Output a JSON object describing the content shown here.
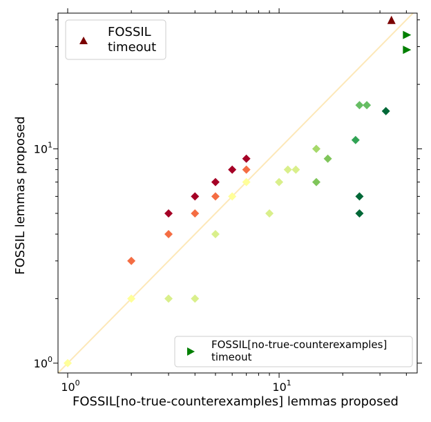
{
  "chart_data": {
    "type": "scatter",
    "xlabel": "FOSSIL[no-true-counterexamples] lemmas proposed",
    "ylabel": "FOSSIL lemmas proposed",
    "xscale": "log",
    "yscale": "log",
    "xlim": [
      0.9,
      45
    ],
    "ylim": [
      0.9,
      43
    ],
    "x_ticks": [
      {
        "value": 1,
        "base": "10",
        "exp": "0"
      },
      {
        "value": 10,
        "base": "10",
        "exp": "1"
      }
    ],
    "y_ticks": [
      {
        "value": 1,
        "base": "10",
        "exp": "0"
      },
      {
        "value": 10,
        "base": "10",
        "exp": "1"
      }
    ],
    "diagonal": {
      "color": "#fde8b8"
    },
    "points": [
      {
        "x": 1,
        "y": 1,
        "color": "#ffff99"
      },
      {
        "x": 2,
        "y": 2,
        "color": "#ffff99"
      },
      {
        "x": 2,
        "y": 3,
        "color": "#f46d43"
      },
      {
        "x": 3,
        "y": 2,
        "color": "#d9ef8b"
      },
      {
        "x": 3,
        "y": 4,
        "color": "#f46d43"
      },
      {
        "x": 3,
        "y": 5,
        "color": "#a50026"
      },
      {
        "x": 4,
        "y": 2,
        "color": "#d9ef8b"
      },
      {
        "x": 4,
        "y": 5,
        "color": "#f46d43"
      },
      {
        "x": 4,
        "y": 6,
        "color": "#a50026"
      },
      {
        "x": 5,
        "y": 4,
        "color": "#d9ef8b"
      },
      {
        "x": 5,
        "y": 6,
        "color": "#f46d43"
      },
      {
        "x": 5,
        "y": 7,
        "color": "#a50026"
      },
      {
        "x": 6,
        "y": 6,
        "color": "#ffff99"
      },
      {
        "x": 6,
        "y": 8,
        "color": "#a50026"
      },
      {
        "x": 7,
        "y": 7,
        "color": "#ffff99"
      },
      {
        "x": 7,
        "y": 8,
        "color": "#f46d43"
      },
      {
        "x": 7,
        "y": 9,
        "color": "#a50026"
      },
      {
        "x": 9,
        "y": 5,
        "color": "#d9ef8b"
      },
      {
        "x": 10,
        "y": 7,
        "color": "#d9ef8b"
      },
      {
        "x": 11,
        "y": 8,
        "color": "#d9ef8b"
      },
      {
        "x": 12,
        "y": 8,
        "color": "#d9ef8b"
      },
      {
        "x": 15,
        "y": 7,
        "color": "#7fc55a"
      },
      {
        "x": 15,
        "y": 10,
        "color": "#a6d96a"
      },
      {
        "x": 17,
        "y": 9,
        "color": "#7fc55a"
      },
      {
        "x": 23,
        "y": 11,
        "color": "#31a354"
      },
      {
        "x": 24,
        "y": 16,
        "color": "#66bd63"
      },
      {
        "x": 26,
        "y": 16,
        "color": "#66bd63"
      },
      {
        "x": 24,
        "y": 6,
        "color": "#006837"
      },
      {
        "x": 24,
        "y": 5,
        "color": "#006837"
      },
      {
        "x": 32,
        "y": 15,
        "color": "#006837"
      }
    ],
    "fossil_timeout": [
      {
        "x": 34,
        "y": 40,
        "color": "#7b0000"
      }
    ],
    "nocex_timeout": [
      {
        "x": 40,
        "y": 34,
        "color": "#007f00"
      },
      {
        "x": 40,
        "y": 29,
        "color": "#007f00"
      }
    ],
    "legend_top": {
      "position": "top-left",
      "marker_color": "#7b0000",
      "lines": [
        "FOSSIL",
        "timeout"
      ]
    },
    "legend_bottom": {
      "position": "bottom-right",
      "marker_color": "#007f00",
      "lines": [
        "FOSSIL[no-true-counterexamples]",
        "timeout"
      ]
    }
  }
}
